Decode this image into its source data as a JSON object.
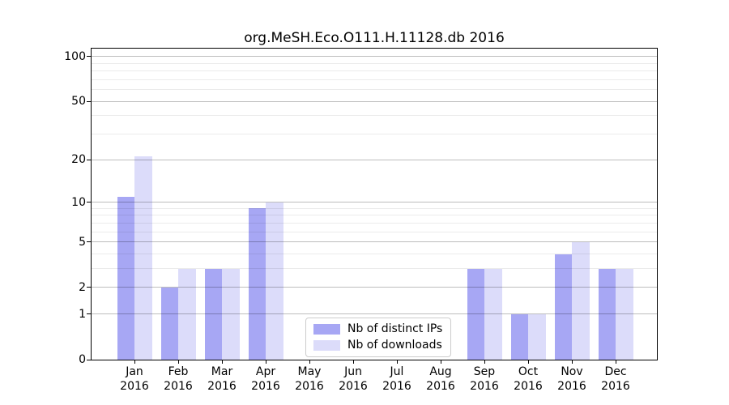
{
  "chart_data": {
    "type": "bar",
    "title": "org.MeSH.Eco.O111.H.11128.db 2016",
    "categories": [
      "Jan 2016",
      "Feb 2016",
      "Mar 2016",
      "Apr 2016",
      "May 2016",
      "Jun 2016",
      "Jul 2016",
      "Aug 2016",
      "Sep 2016",
      "Oct 2016",
      "Nov 2016",
      "Dec 2016"
    ],
    "series": [
      {
        "name": "Nb of distinct IPs",
        "color": "#a7a7f4",
        "values": [
          11,
          2,
          3,
          9,
          0,
          0,
          0,
          0,
          3,
          1,
          4,
          3
        ]
      },
      {
        "name": "Nb of downloads",
        "color": "#dcdcfa",
        "values": [
          21,
          3,
          3,
          10,
          0,
          0,
          0,
          0,
          3,
          1,
          5,
          3
        ]
      }
    ],
    "yscale": "log1p",
    "ylim": [
      0,
      113
    ],
    "yticks": [
      0,
      1,
      2,
      5,
      10,
      20,
      50,
      100
    ],
    "yticks_minor": [
      3,
      4,
      6,
      7,
      8,
      9,
      30,
      40,
      60,
      70,
      80,
      90
    ],
    "xlabel": "",
    "ylabel": "",
    "grid": true,
    "legend_position": "lower center"
  }
}
